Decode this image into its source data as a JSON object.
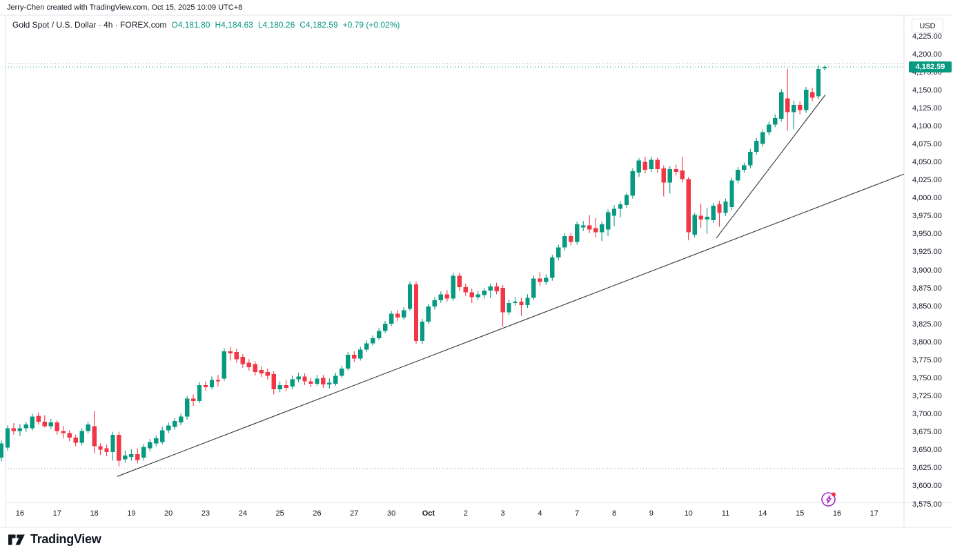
{
  "attribution": "Jerry-Chen created with TradingView.com, Oct 15, 2025 10:09 UTC+8",
  "legend": {
    "title": "Gold Spot / U.S. Dollar · 4h · FOREX.com",
    "ohlc": [
      {
        "k": "O",
        "v": "4,181.80"
      },
      {
        "k": "H",
        "v": "4,184.63"
      },
      {
        "k": "L",
        "v": "4,180.26"
      },
      {
        "k": "C",
        "v": "4,182.59"
      }
    ],
    "change": "+0.79 (+0.02%)"
  },
  "price_scale": {
    "currency_button": "USD",
    "last_price_label": "4,182.59",
    "labels": [
      {
        "p": 4225,
        "t": "4,225.00"
      },
      {
        "p": 4200,
        "t": "4,200.00"
      },
      {
        "p": 4175,
        "t": "4,175.00"
      },
      {
        "p": 4150,
        "t": "4,150.00"
      },
      {
        "p": 4125,
        "t": "4,125.00"
      },
      {
        "p": 4100,
        "t": "4,100.00"
      },
      {
        "p": 4075,
        "t": "4,075.00"
      },
      {
        "p": 4050,
        "t": "4,050.00"
      },
      {
        "p": 4025,
        "t": "4,025.00"
      },
      {
        "p": 4000,
        "t": "4,000.00"
      },
      {
        "p": 3975,
        "t": "3,975.00"
      },
      {
        "p": 3950,
        "t": "3,950.00"
      },
      {
        "p": 3925,
        "t": "3,925.00"
      },
      {
        "p": 3900,
        "t": "3,900.00"
      },
      {
        "p": 3875,
        "t": "3,875.00"
      },
      {
        "p": 3850,
        "t": "3,850.00"
      },
      {
        "p": 3825,
        "t": "3,825.00"
      },
      {
        "p": 3800,
        "t": "3,800.00"
      },
      {
        "p": 3775,
        "t": "3,775.00"
      },
      {
        "p": 3750,
        "t": "3,750.00"
      },
      {
        "p": 3725,
        "t": "3,725.00"
      },
      {
        "p": 3700,
        "t": "3,700.00"
      },
      {
        "p": 3675,
        "t": "3,675.00"
      },
      {
        "p": 3650,
        "t": "3,650.00"
      },
      {
        "p": 3625,
        "t": "3,625.00"
      },
      {
        "p": 3600,
        "t": "3,600.00"
      },
      {
        "p": 3575,
        "t": "3,575.00"
      }
    ]
  },
  "footer": {
    "logo_text": "TradingView"
  },
  "colors": {
    "up": "#089981",
    "down": "#f23645",
    "text": "#131722",
    "border": "#e0e3eb",
    "muted_dotted": "#9598a1",
    "trendline": "#30343f",
    "badge_bg": "#089981",
    "badge_text": "#ffffff",
    "icon_purple": "#a229c5",
    "icon_dot": "#f23645"
  },
  "chart_data": {
    "type": "candlestick",
    "title": "Gold Spot / U.S. Dollar",
    "interval": "4h",
    "feed": "FOREX.com",
    "current": {
      "open": 4181.8,
      "high": 4184.63,
      "low": 4180.26,
      "close": 4182.59,
      "change": "+0.79 (+0.02%)"
    },
    "ylim": [
      3575,
      4225
    ],
    "y_step": 25,
    "grid": false,
    "x_labels": [
      "16",
      "17",
      "18",
      "19",
      "20",
      "23",
      "24",
      "25",
      "26",
      "27",
      "30",
      "Oct",
      "2",
      "3",
      "4",
      "7",
      "8",
      "9",
      "10",
      "11",
      "14",
      "15",
      "16",
      "17"
    ],
    "first_label_candle_index": 3,
    "candles_per_label": 6,
    "ohlc_order": [
      "open",
      "high",
      "low",
      "close"
    ],
    "candles": [
      [
        3640,
        3664,
        3635,
        3660
      ],
      [
        3654,
        3685,
        3650,
        3681
      ],
      [
        3681,
        3688,
        3672,
        3677
      ],
      [
        3677,
        3687,
        3670,
        3681
      ],
      [
        3681,
        3690,
        3676,
        3686
      ],
      [
        3681,
        3701,
        3678,
        3697
      ],
      [
        3698,
        3703,
        3686,
        3690
      ],
      [
        3690,
        3699,
        3682,
        3684
      ],
      [
        3684,
        3694,
        3680,
        3689
      ],
      [
        3689,
        3692,
        3672,
        3677
      ],
      [
        3677,
        3684,
        3667,
        3674
      ],
      [
        3674,
        3678,
        3663,
        3668
      ],
      [
        3668,
        3672,
        3656,
        3661
      ],
      [
        3661,
        3681,
        3657,
        3677
      ],
      [
        3677,
        3690,
        3674,
        3686
      ],
      [
        3684,
        3705,
        3646,
        3656
      ],
      [
        3656,
        3660,
        3644,
        3651
      ],
      [
        3653,
        3658,
        3642,
        3648
      ],
      [
        3648,
        3676,
        3636,
        3672
      ],
      [
        3672,
        3676,
        3628,
        3636
      ],
      [
        3638,
        3650,
        3633,
        3643
      ],
      [
        3641,
        3652,
        3636,
        3645
      ],
      [
        3645,
        3653,
        3632,
        3637
      ],
      [
        3640,
        3659,
        3636,
        3655
      ],
      [
        3653,
        3666,
        3649,
        3662
      ],
      [
        3660,
        3671,
        3656,
        3667
      ],
      [
        3662,
        3683,
        3659,
        3678
      ],
      [
        3678,
        3689,
        3674,
        3685
      ],
      [
        3683,
        3695,
        3679,
        3691
      ],
      [
        3689,
        3701,
        3685,
        3697
      ],
      [
        3697,
        3726,
        3693,
        3722
      ],
      [
        3722,
        3728,
        3712,
        3719
      ],
      [
        3719,
        3745,
        3716,
        3741
      ],
      [
        3741,
        3746,
        3733,
        3738
      ],
      [
        3738,
        3753,
        3735,
        3748
      ],
      [
        3748,
        3755,
        3739,
        3746
      ],
      [
        3750,
        3792,
        3747,
        3788
      ],
      [
        3788,
        3794,
        3775,
        3785
      ],
      [
        3787,
        3791,
        3772,
        3777
      ],
      [
        3780,
        3784,
        3765,
        3770
      ],
      [
        3772,
        3777,
        3761,
        3766
      ],
      [
        3770,
        3774,
        3754,
        3759
      ],
      [
        3762,
        3767,
        3752,
        3757
      ],
      [
        3759,
        3764,
        3749,
        3754
      ],
      [
        3756,
        3760,
        3728,
        3735
      ],
      [
        3735,
        3746,
        3731,
        3741
      ],
      [
        3741,
        3748,
        3732,
        3737
      ],
      [
        3739,
        3754,
        3735,
        3749
      ],
      [
        3749,
        3758,
        3745,
        3753
      ],
      [
        3753,
        3757,
        3741,
        3746
      ],
      [
        3746,
        3751,
        3738,
        3743
      ],
      [
        3743,
        3755,
        3740,
        3750
      ],
      [
        3751,
        3755,
        3737,
        3742
      ],
      [
        3742,
        3750,
        3736,
        3744
      ],
      [
        3743,
        3758,
        3740,
        3754
      ],
      [
        3754,
        3768,
        3751,
        3764
      ],
      [
        3764,
        3787,
        3761,
        3783
      ],
      [
        3783,
        3788,
        3773,
        3778
      ],
      [
        3778,
        3794,
        3775,
        3790
      ],
      [
        3790,
        3803,
        3787,
        3799
      ],
      [
        3799,
        3810,
        3796,
        3806
      ],
      [
        3806,
        3820,
        3803,
        3816
      ],
      [
        3816,
        3830,
        3813,
        3826
      ],
      [
        3826,
        3844,
        3823,
        3840
      ],
      [
        3840,
        3845,
        3830,
        3835
      ],
      [
        3835,
        3849,
        3832,
        3845
      ],
      [
        3847,
        3885,
        3844,
        3881
      ],
      [
        3881,
        3885,
        3798,
        3802
      ],
      [
        3802,
        3833,
        3798,
        3829
      ],
      [
        3829,
        3854,
        3826,
        3850
      ],
      [
        3850,
        3863,
        3846,
        3859
      ],
      [
        3859,
        3871,
        3855,
        3867
      ],
      [
        3867,
        3873,
        3857,
        3861
      ],
      [
        3861,
        3897,
        3858,
        3893
      ],
      [
        3893,
        3897,
        3872,
        3877
      ],
      [
        3877,
        3882,
        3865,
        3870
      ],
      [
        3870,
        3875,
        3855,
        3863
      ],
      [
        3863,
        3872,
        3859,
        3867
      ],
      [
        3866,
        3876,
        3861,
        3872
      ],
      [
        3872,
        3882,
        3862,
        3878
      ],
      [
        3878,
        3883,
        3867,
        3871
      ],
      [
        3876,
        3880,
        3822,
        3842
      ],
      [
        3842,
        3860,
        3838,
        3855
      ],
      [
        3855,
        3863,
        3851,
        3857
      ],
      [
        3857,
        3862,
        3837,
        3852
      ],
      [
        3852,
        3867,
        3848,
        3862
      ],
      [
        3862,
        3893,
        3859,
        3889
      ],
      [
        3889,
        3898,
        3879,
        3884
      ],
      [
        3884,
        3895,
        3880,
        3890
      ],
      [
        3890,
        3922,
        3886,
        3918
      ],
      [
        3918,
        3936,
        3914,
        3932
      ],
      [
        3932,
        3952,
        3928,
        3948
      ],
      [
        3948,
        3952,
        3935,
        3940
      ],
      [
        3940,
        3968,
        3936,
        3964
      ],
      [
        3960,
        3969,
        3955,
        3963
      ],
      [
        3963,
        3977,
        3952,
        3957
      ],
      [
        3959,
        3973,
        3946,
        3953
      ],
      [
        3953,
        3968,
        3941,
        3964
      ],
      [
        3957,
        3985,
        3948,
        3981
      ],
      [
        3976,
        3991,
        3962,
        3986
      ],
      [
        3986,
        3996,
        3974,
        3992
      ],
      [
        3991,
        4008,
        3987,
        4005
      ],
      [
        4004,
        4042,
        4000,
        4038
      ],
      [
        4036,
        4056,
        4030,
        4053
      ],
      [
        4051,
        4058,
        4035,
        4040
      ],
      [
        4041,
        4058,
        4037,
        4054
      ],
      [
        4054,
        4057,
        4036,
        4041
      ],
      [
        4042,
        4046,
        4003,
        4022
      ],
      [
        4022,
        4045,
        4007,
        4041
      ],
      [
        4041,
        4047,
        4032,
        4037
      ],
      [
        4039,
        4058,
        4022,
        4027
      ],
      [
        4027,
        4030,
        3942,
        3953
      ],
      [
        3950,
        3980,
        3946,
        3977
      ],
      [
        3976,
        3993,
        3959,
        3971
      ],
      [
        3971,
        3987,
        3951,
        3975
      ],
      [
        3970,
        3994,
        3966,
        3990
      ],
      [
        3992,
        3997,
        3961,
        3980
      ],
      [
        3980,
        4000,
        3976,
        3996
      ],
      [
        3988,
        4029,
        3984,
        4025
      ],
      [
        4025,
        4044,
        4021,
        4040
      ],
      [
        4040,
        4050,
        4036,
        4046
      ],
      [
        4046,
        4069,
        4042,
        4065
      ],
      [
        4065,
        4084,
        4061,
        4080
      ],
      [
        4076,
        4096,
        4072,
        4092
      ],
      [
        4092,
        4107,
        4088,
        4103
      ],
      [
        4103,
        4117,
        4099,
        4112
      ],
      [
        4111,
        4152,
        4107,
        4148
      ],
      [
        4139,
        4180,
        4094,
        4120
      ],
      [
        4120,
        4136,
        4096,
        4130
      ],
      [
        4130,
        4135,
        4117,
        4123
      ],
      [
        4123,
        4155,
        4119,
        4151
      ],
      [
        4148,
        4154,
        4135,
        4140
      ],
      [
        4142,
        4185,
        4138,
        4180
      ],
      [
        4181,
        4185,
        4178,
        4183
      ]
    ],
    "trendlines": [
      {
        "i1": 18.7,
        "p1": 3614,
        "i2": 145.8,
        "p2": 4034
      },
      {
        "i1": 115.5,
        "p1": 3945,
        "i2": 133.1,
        "p2": 4144
      }
    ],
    "price_lines": [
      {
        "price": 4187.0,
        "style": "dotted",
        "color_key": "muted_dotted"
      },
      {
        "price": 4182.59,
        "style": "dotted",
        "color_key": "up"
      },
      {
        "price": 3625.0,
        "style": "dotted",
        "color_key": "muted_dotted"
      }
    ],
    "legend_position": "top-left"
  }
}
